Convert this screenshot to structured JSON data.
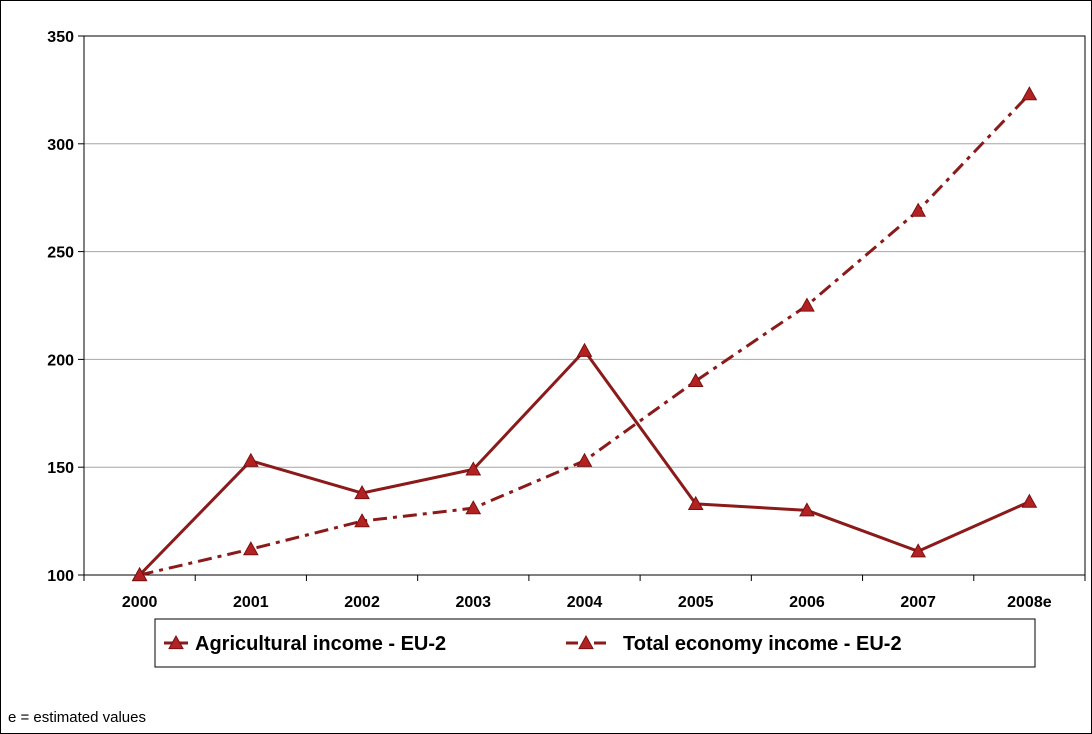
{
  "chart_data": {
    "type": "line",
    "categories": [
      "2000",
      "2001",
      "2002",
      "2003",
      "2004",
      "2005",
      "2006",
      "2007",
      "2008e"
    ],
    "series": [
      {
        "name": "Agricultural income - EU-2",
        "values": [
          100,
          153,
          138,
          149,
          204,
          133,
          130,
          111,
          134
        ],
        "line_style": "solid"
      },
      {
        "name": "Total economy income - EU-2",
        "values": [
          100,
          112,
          125,
          131,
          153,
          190,
          225,
          269,
          323
        ],
        "line_style": "dash-dot"
      }
    ],
    "ylim": [
      100,
      350
    ],
    "yticks": [
      100,
      150,
      200,
      250,
      300,
      350
    ],
    "grid": "horizontal",
    "legend_position": "bottom",
    "colors": {
      "line": "#8b1a1a",
      "marker_fill": "#b22222",
      "marker_edge": "#7a1010",
      "grid": "#a6a6a6"
    }
  },
  "footnote": "e = estimated values"
}
